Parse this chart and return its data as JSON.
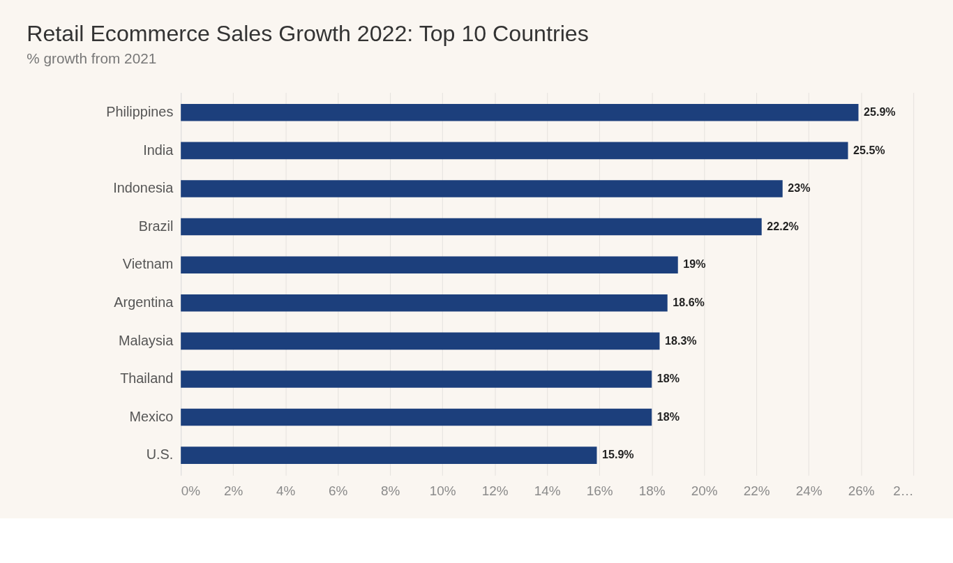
{
  "chart_data": {
    "type": "bar",
    "orientation": "horizontal",
    "title": "Retail Ecommerce Sales Growth 2022: Top 10 Countries",
    "subtitle": "% growth from 2021",
    "categories": [
      "Philippines",
      "India",
      "Indonesia",
      "Brazil",
      "Vietnam",
      "Argentina",
      "Malaysia",
      "Thailand",
      "Mexico",
      "U.S."
    ],
    "values": [
      25.9,
      25.5,
      23,
      22.2,
      19,
      18.6,
      18.3,
      18,
      18,
      15.9
    ],
    "value_labels": [
      "25.9%",
      "25.5%",
      "23%",
      "22.2%",
      "19%",
      "18.6%",
      "18.3%",
      "18%",
      "18%",
      "15.9%"
    ],
    "color": "#1c3f7c",
    "xlim": [
      0,
      28
    ],
    "xticks": [
      {
        "value": 0,
        "label": "0%"
      },
      {
        "value": 2,
        "label": "2%"
      },
      {
        "value": 4,
        "label": "4%"
      },
      {
        "value": 6,
        "label": "6%"
      },
      {
        "value": 8,
        "label": "8%"
      },
      {
        "value": 10,
        "label": "10%"
      },
      {
        "value": 12,
        "label": "12%"
      },
      {
        "value": 14,
        "label": "14%"
      },
      {
        "value": 16,
        "label": "16%"
      },
      {
        "value": 18,
        "label": "18%"
      },
      {
        "value": 20,
        "label": "20%"
      },
      {
        "value": 22,
        "label": "22%"
      },
      {
        "value": 24,
        "label": "24%"
      },
      {
        "value": 26,
        "label": "26%"
      },
      {
        "value": 28,
        "label": "2…"
      }
    ],
    "grid": "x"
  }
}
